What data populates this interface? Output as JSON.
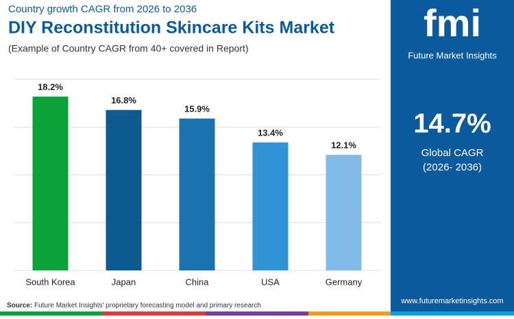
{
  "chart_data": {
    "type": "bar",
    "supertitle": "Country growth CAGR from 2026 to 2036",
    "title": "DIY Reconstitution Skincare Kits Market",
    "subtitle": "(Example of Country CAGR from 40+ covered in Report)",
    "categories": [
      "South Korea",
      "Japan",
      "China",
      "USA",
      "Germany"
    ],
    "values": [
      18.2,
      16.8,
      15.9,
      13.4,
      12.1
    ],
    "value_labels": [
      "18.2%",
      "16.8%",
      "15.9%",
      "13.4%",
      "12.1%"
    ],
    "colors": [
      "#0aa33a",
      "#0d5a91",
      "#1a72b0",
      "#2f93d6",
      "#82bce6"
    ],
    "ylim": [
      0,
      20
    ],
    "yticks": [
      0,
      5,
      10,
      15,
      20
    ],
    "grid": true
  },
  "brand": {
    "logo": "fmi",
    "name": "Future Market Insights",
    "website": "www.futuremarketinsights.com"
  },
  "highlight": {
    "value": "14.7%",
    "caption": "Global CAGR",
    "period": "(2026- 2036)"
  },
  "source": {
    "label": "Source:",
    "text": "Future Market Insights' proprietary forecasting model and primary research"
  }
}
